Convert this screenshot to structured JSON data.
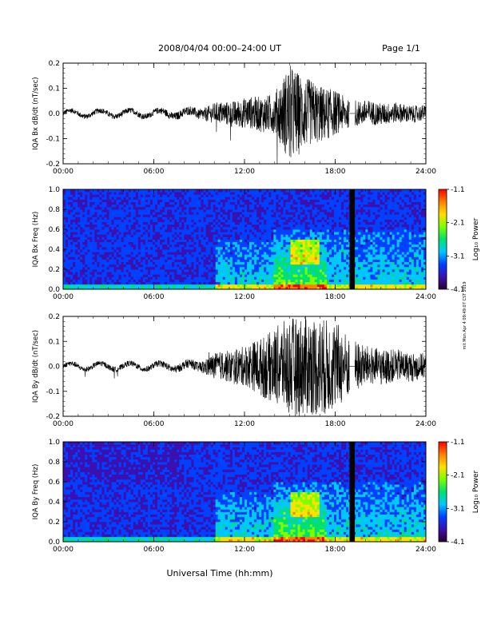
{
  "header": {
    "title": "2008/04/04  00:00–24:00 UT",
    "page": "Page 1/1"
  },
  "x_axis_title": "Universal Time (hh:mm)",
  "footer_note": "mit Mon Apr 4 09:49:07 CST 2019",
  "colorbar": {
    "label": "Log₁₀ Power",
    "ticks": [
      "-1.1",
      "-2.1",
      "-3.1",
      "-4.1"
    ],
    "colors": [
      "#2a0033",
      "#3a10b0",
      "#0040ff",
      "#00c8ff",
      "#00e070",
      "#7cff00",
      "#ffe000",
      "#ff8000",
      "#ff0000"
    ]
  },
  "chart_data": [
    {
      "type": "line",
      "ylabel": "IQA Bx dB/dt (nT/sec)",
      "x_ticks": [
        "00:00",
        "06:00",
        "12:00",
        "18:00",
        "24:00"
      ],
      "y_ticks": [
        "0.2",
        "0.1",
        "0.0",
        "-0.1",
        "-0.2"
      ],
      "xlim_hours": [
        0,
        24
      ],
      "ylim": [
        -0.2,
        0.2
      ],
      "gap_hours": [
        18.95,
        19.3
      ],
      "envelope": [
        {
          "h": 0,
          "amp": 0.01
        },
        {
          "h": 6,
          "amp": 0.012
        },
        {
          "h": 9,
          "amp": 0.02
        },
        {
          "h": 10,
          "amp": 0.04
        },
        {
          "h": 12,
          "amp": 0.06
        },
        {
          "h": 14,
          "amp": 0.08
        },
        {
          "h": 15,
          "amp": 0.2
        },
        {
          "h": 16,
          "amp": 0.14
        },
        {
          "h": 18,
          "amp": 0.09
        },
        {
          "h": 19,
          "amp": 0.05
        },
        {
          "h": 20,
          "amp": 0.05
        },
        {
          "h": 24,
          "amp": 0.03
        }
      ]
    },
    {
      "type": "heatmap",
      "ylabel": "IQA Bx Freq (Hz)",
      "x_ticks": [
        "00:00",
        "06:00",
        "12:00",
        "18:00",
        "24:00"
      ],
      "y_ticks": [
        "1.0",
        "0.8",
        "0.6",
        "0.4",
        "0.2",
        "0.0"
      ],
      "xlim_hours": [
        0,
        24
      ],
      "ylim": [
        0,
        1.0
      ],
      "zlim": [
        -4.1,
        -1.1
      ],
      "gap_hours": [
        18.95,
        19.3
      ]
    },
    {
      "type": "line",
      "ylabel": "IQA By dB/dt (nT/sec)",
      "x_ticks": [
        "00:00",
        "06:00",
        "12:00",
        "18:00",
        "24:00"
      ],
      "y_ticks": [
        "0.2",
        "0.1",
        "0.0",
        "-0.1",
        "-0.2"
      ],
      "xlim_hours": [
        0,
        24
      ],
      "ylim": [
        -0.2,
        0.2
      ],
      "gap_hours": [
        18.95,
        19.3
      ],
      "envelope": [
        {
          "h": 0,
          "amp": 0.01
        },
        {
          "h": 6,
          "amp": 0.012
        },
        {
          "h": 9,
          "amp": 0.02
        },
        {
          "h": 10,
          "amp": 0.05
        },
        {
          "h": 12,
          "amp": 0.08
        },
        {
          "h": 14,
          "amp": 0.15
        },
        {
          "h": 15,
          "amp": 0.2
        },
        {
          "h": 17,
          "amp": 0.2
        },
        {
          "h": 18,
          "amp": 0.18
        },
        {
          "h": 19,
          "amp": 0.12
        },
        {
          "h": 20,
          "amp": 0.08
        },
        {
          "h": 24,
          "amp": 0.05
        }
      ]
    },
    {
      "type": "heatmap",
      "ylabel": "IQA By Freq (Hz)",
      "x_ticks": [
        "00:00",
        "06:00",
        "12:00",
        "18:00",
        "24:00"
      ],
      "y_ticks": [
        "1.0",
        "0.8",
        "0.6",
        "0.4",
        "0.2",
        "0.0"
      ],
      "xlim_hours": [
        0,
        24
      ],
      "ylim": [
        0,
        1.0
      ],
      "zlim": [
        -4.1,
        -1.1
      ],
      "gap_hours": [
        18.95,
        19.3
      ]
    }
  ]
}
